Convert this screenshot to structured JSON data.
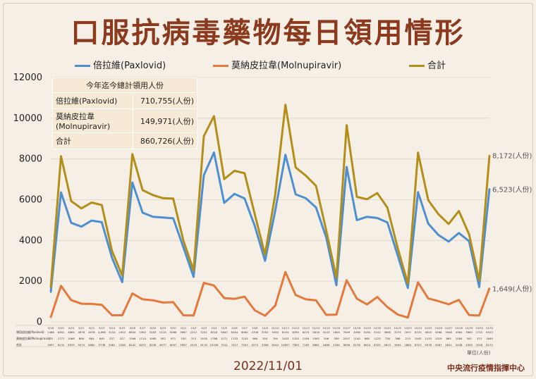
{
  "title": "口服抗病毒藥物每日領用情形",
  "colors": {
    "paxlovid": "#4d8fd1",
    "molnupiravir": "#e5793c",
    "total": "#b38e18",
    "title": "#8b3a1e",
    "accent": "#7a2e1c"
  },
  "legend": {
    "paxlovid": "倍拉維(Paxlovid)",
    "molnupiravir": "莫納皮拉韋(Molnupiravir)",
    "total": "合計"
  },
  "summary": {
    "header": "今年迄今總計領用人份",
    "rows": [
      {
        "label": "倍拉維(Paxlovid)",
        "value": "710,755(人份)"
      },
      {
        "label": "莫納皮拉韋(Molnupiravir)",
        "value": "149,971(人份)"
      },
      {
        "label": "合計",
        "value": "860,726(人份)"
      }
    ]
  },
  "end_labels": {
    "total": "8,172(人份)",
    "paxlovid": "6,523(人份)",
    "molnupiravir": "1,649(人份)"
  },
  "footer": {
    "date": "2022/11/01",
    "source": "中央流行疫情指揮中心",
    "unit": "單位(人份)"
  },
  "table_row_labels": [
    "領用倍拉維(Paxlovid)",
    "莫納皮拉韋(Molnupiravir)",
    "合計"
  ],
  "chart_data": {
    "type": "line",
    "ylim": [
      0,
      12000
    ],
    "yticks": [
      0,
      2000,
      4000,
      6000,
      8000,
      10000,
      12000
    ],
    "categories": [
      "9/18",
      "9/19",
      "9/20",
      "9/21",
      "9/22",
      "9/23",
      "9/24",
      "9/25",
      "9/26",
      "9/27",
      "9/28",
      "9/29",
      "9/30",
      "10/1",
      "10/2",
      "10/3",
      "10/4",
      "10/5",
      "10/6",
      "10/7",
      "10/8",
      "10/9",
      "10/10",
      "10/11",
      "10/12",
      "10/13",
      "10/14",
      "10/15",
      "10/16",
      "10/17",
      "10/18",
      "10/19",
      "10/20",
      "10/21",
      "10/22",
      "10/23",
      "10/24",
      "10/25",
      "10/26",
      "10/27",
      "10/28",
      "10/29",
      "10/30",
      "10/31"
    ],
    "series": [
      {
        "name": "倍拉維(Paxlovid)",
        "key": "paxlovid",
        "values": [
          1466,
          6361,
          4865,
          4678,
          4978,
          4898,
          3154,
          1953,
          6844,
          5362,
          5163,
          5125,
          5086,
          3667,
          2212,
          7201,
          8318,
          5843,
          6284,
          6060,
          4708,
          3002,
          5450,
          8204,
          6263,
          6074,
          5618,
          4143,
          1805,
          7609,
          4998,
          5164,
          5102,
          4885,
          3274,
          1671,
          6370,
          4825,
          4268,
          3946,
          4364,
          3965,
          1715,
          6523
        ]
      },
      {
        "name": "莫納皮拉韋(Molnupiravir)",
        "key": "molnupiravir",
        "values": [
          231,
          1771,
          1068,
          896,
          884,
          840,
          327,
          327,
          1398,
          1110,
          1065,
          952,
          971,
          330,
          313,
          1918,
          1788,
          1171,
          1133,
          1243,
          566,
          304,
          794,
          2453,
          1320,
          1109,
          1063,
          346,
          359,
          2047,
          1140,
          860,
          1223,
          728,
          366,
          213,
          1943,
          1153,
          1019,
          865,
          1084,
          340,
          313,
          1649
        ]
      },
      {
        "name": "合計",
        "key": "total",
        "values": [
          1697,
          8132,
          5933,
          5574,
          5862,
          5738,
          3481,
          2280,
          8242,
          6472,
          6228,
          6077,
          6057,
          3997,
          2525,
          9119,
          10106,
          7014,
          7417,
          7303,
          5274,
          3306,
          6244,
          10657,
          7583,
          7183,
          6681,
          4489,
          2164,
          9656,
          6138,
          6024,
          6325,
          5613,
          3640,
          1884,
          8313,
          5978,
          5287,
          4811,
          5448,
          4305,
          2028,
          8172
        ]
      }
    ],
    "table_values": {
      "paxlovid": [
        "1466",
        "6361",
        "4865",
        "4678",
        "4978",
        "4,898",
        "3154",
        "1953",
        "6844",
        "5362",
        "5163",
        "5125",
        "5086",
        "3667",
        "2212",
        "7201",
        "8318",
        "5843",
        "6284",
        "6060",
        "4708",
        "3002",
        "5450",
        "8204",
        "6263",
        "6074",
        "5618",
        "4143",
        "1805",
        "7609",
        "4998",
        "5164",
        "5102",
        "4885",
        "3274",
        "1671",
        "6370",
        "4825",
        "4268",
        "3946",
        "4364",
        "3965",
        "1715",
        "6523"
      ],
      "molnupiravir": [
        "231",
        "1771",
        "1068",
        "896",
        "884",
        "840",
        "327",
        "327",
        "1398",
        "1110",
        "1065",
        "952",
        "971",
        "330",
        "313",
        "1918",
        "1788",
        "1171",
        "1133",
        "1243",
        "566",
        "304",
        "794",
        "2453",
        "1320",
        "1109",
        "1063",
        "346",
        "359",
        "2047",
        "1140",
        "860",
        "1223",
        "728",
        "366",
        "213",
        "1943",
        "1153",
        "1019",
        "865",
        "1084",
        "340",
        "313",
        "1649"
      ],
      "total": [
        "1697",
        "8132",
        "5933",
        "5574",
        "5862",
        "5738",
        "3481",
        "2280",
        "8242",
        "6472",
        "6228",
        "6077",
        "6057",
        "3997",
        "2525",
        "9119",
        "10106",
        "7014",
        "7417",
        "7303",
        "5274",
        "3306",
        "6244",
        "10657",
        "7583",
        "7183",
        "6681",
        "4489",
        "2164",
        "9656",
        "6138",
        "6024",
        "6325",
        "5613",
        "3640",
        "1884",
        "8313",
        "5978",
        "5287",
        "4811",
        "5448",
        "4305",
        "2028",
        "8172"
      ]
    }
  }
}
